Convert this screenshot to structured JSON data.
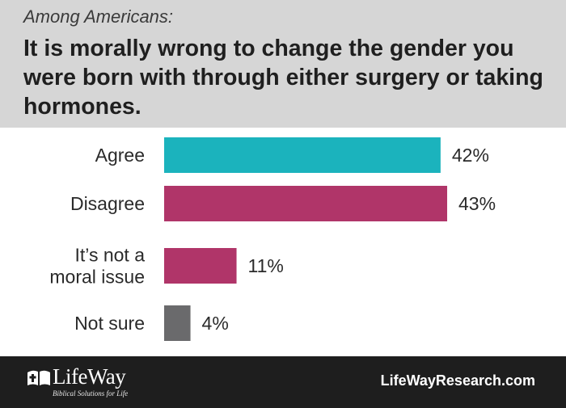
{
  "header": {
    "kicker": "Among Americans:",
    "title": "It is morally wrong to change the gender you were born with through either surgery or taking hormones."
  },
  "chart_data": {
    "type": "bar",
    "orientation": "horizontal",
    "categories": [
      [
        "Agree"
      ],
      [
        "Disagree"
      ],
      [
        "It’s not a",
        "moral issue"
      ],
      [
        "Not sure"
      ]
    ],
    "values": [
      42,
      43,
      11,
      4
    ],
    "value_labels": [
      "42%",
      "43%",
      "11%",
      "4%"
    ],
    "colors": [
      "#1bb3bd",
      "#b03569",
      "#b03569",
      "#6a6a6c"
    ],
    "xlim": [
      0,
      100
    ],
    "grid": false,
    "legend": "none"
  },
  "footer": {
    "logo_word": "LifeWay",
    "logo_tagline": "Biblical Solutions for Life",
    "website": "LifeWayResearch.com"
  },
  "colors": {
    "header_bg": "#d6d6d6",
    "footer_bg": "#1e1e1e"
  }
}
